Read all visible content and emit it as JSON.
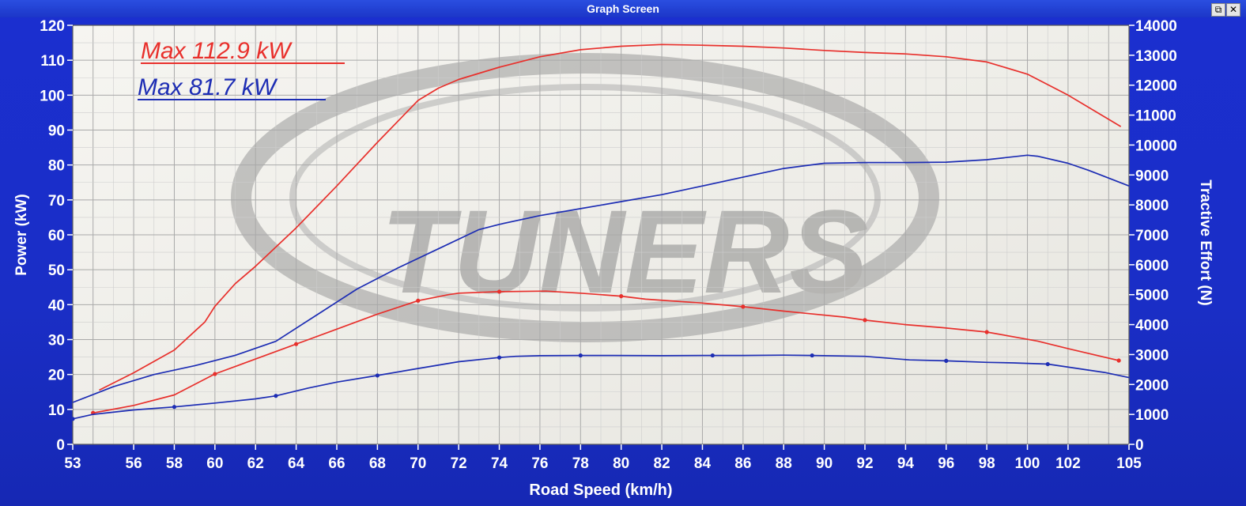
{
  "window": {
    "title": "Graph Screen",
    "restore_glyph": "⧉",
    "close_glyph": "✕"
  },
  "annotations": [
    {
      "text": "Max 112.9 kW",
      "color": "#e8302c"
    },
    {
      "text": "Max 81.7 kW",
      "color": "#1d2db4"
    }
  ],
  "watermark": {
    "text": "TUNERS",
    "color": "#8a8a8a"
  },
  "chart_data": {
    "type": "line",
    "xlabel": "Road Speed (km/h)",
    "ylabel": "Power (kW)",
    "y2label": "Tractive Effort (N)",
    "xlim": [
      53,
      105
    ],
    "ylim": [
      0,
      120
    ],
    "y2lim": [
      0,
      14000
    ],
    "xticks": [
      53,
      56,
      58,
      60,
      62,
      64,
      66,
      68,
      70,
      72,
      74,
      76,
      78,
      80,
      82,
      84,
      86,
      88,
      90,
      92,
      94,
      96,
      98,
      100,
      102,
      105
    ],
    "yticks": [
      0,
      10,
      20,
      30,
      40,
      50,
      60,
      70,
      80,
      90,
      100,
      110,
      120
    ],
    "y2ticks": [
      0,
      1000,
      2000,
      3000,
      4000,
      5000,
      6000,
      7000,
      8000,
      9000,
      10000,
      11000,
      12000,
      13000,
      14000
    ],
    "grid": true,
    "series": [
      {
        "color": "#e8302c",
        "axis": "left",
        "markers": false,
        "x": [
          54.3,
          56,
          58,
          59.5,
          60,
          61,
          62,
          64,
          66,
          68,
          70,
          71,
          72,
          74,
          76,
          78,
          80,
          82,
          84,
          86,
          88,
          90,
          92,
          94,
          96,
          98,
          100,
          102,
          104.6
        ],
        "y": [
          15.5,
          20.5,
          27,
          35,
          39.5,
          46,
          51,
          62,
          74,
          86.5,
          98.5,
          102,
          104.5,
          108,
          111,
          113,
          114,
          114.5,
          114.3,
          114,
          113.5,
          112.8,
          112.2,
          111.8,
          111,
          109.5,
          106,
          100,
          91
        ]
      },
      {
        "color": "#1d2db4",
        "axis": "left",
        "markers": false,
        "x": [
          53,
          55,
          57,
          59,
          61,
          63,
          65,
          67,
          69,
          71,
          73,
          74,
          76,
          78,
          80,
          82,
          84,
          86,
          88,
          90,
          92,
          94,
          96,
          98,
          100,
          100.5,
          102,
          103,
          105
        ],
        "y": [
          12,
          16.5,
          20,
          22.5,
          25.5,
          29.5,
          37,
          44.5,
          50.5,
          56,
          61.5,
          63,
          65.5,
          67.5,
          69.5,
          71.5,
          74,
          76.5,
          79,
          80.5,
          80.7,
          80.7,
          80.8,
          81.5,
          82.8,
          82.5,
          80.5,
          78.5,
          74
        ]
      },
      {
        "color": "#e8302c",
        "axis": "right",
        "markers": true,
        "x": [
          54,
          56,
          58,
          60,
          61,
          62,
          64,
          66,
          68,
          70,
          71.5,
          72,
          74,
          76.3,
          78,
          80,
          81.2,
          84,
          86,
          88,
          91,
          92,
          94,
          95.8,
          98,
          100.5,
          102,
          104.5
        ],
        "y": [
          1050,
          1300,
          1650,
          2350,
          2600,
          2850,
          3350,
          3850,
          4350,
          4800,
          5000,
          5050,
          5100,
          5120,
          5050,
          4950,
          4850,
          4720,
          4600,
          4450,
          4250,
          4150,
          4000,
          3900,
          3750,
          3450,
          3200,
          2800
        ]
      },
      {
        "color": "#1d2db4",
        "axis": "right",
        "markers": true,
        "x": [
          53,
          54,
          56,
          58,
          60,
          62,
          63,
          64.6,
          66,
          68,
          69.7,
          72,
          74,
          74.8,
          76,
          78,
          79.6,
          82,
          84.5,
          86,
          88,
          89.4,
          92,
          94.2,
          96,
          98,
          99.3,
          101,
          103.8,
          105
        ],
        "y": [
          850,
          1000,
          1150,
          1250,
          1380,
          1520,
          1620,
          1880,
          2080,
          2300,
          2500,
          2760,
          2900,
          2940,
          2960,
          2970,
          2970,
          2960,
          2970,
          2970,
          2980,
          2970,
          2940,
          2820,
          2790,
          2740,
          2720,
          2680,
          2400,
          2230
        ]
      }
    ]
  }
}
